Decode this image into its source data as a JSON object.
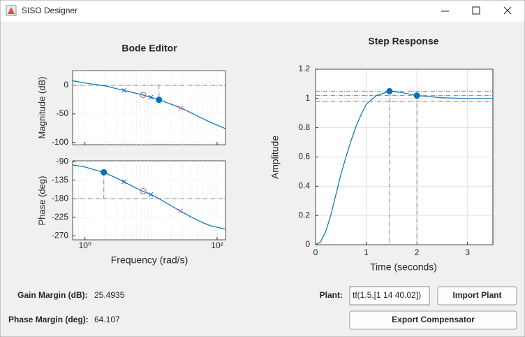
{
  "window": {
    "title": "SISO Designer"
  },
  "bode": {
    "title": "Bode Editor",
    "xlabel": "Frequency (rad/s)",
    "xscale": "log",
    "xlim": [
      0.65,
      134
    ],
    "xticks": [
      {
        "value": 1,
        "label": "10⁰"
      },
      {
        "value": 100,
        "label": "10²"
      }
    ],
    "line_color": "#0072bd",
    "frequency": [
      0.65,
      1,
      2,
      3,
      5,
      7,
      10,
      13.2,
      20,
      30,
      40,
      60,
      80,
      134
    ],
    "magnitude": {
      "ylabel": "Magnitude (dB)",
      "ylim": [
        -104,
        25.6
      ],
      "yticks": [
        0,
        -50,
        -100
      ],
      "reference": 0,
      "values": [
        8,
        4,
        -1,
        -6,
        -12,
        -16,
        -21,
        -25.5,
        -33,
        -41,
        -48,
        -58,
        -65,
        -76
      ]
    },
    "phase": {
      "ylabel": "Phase (deg)",
      "ylim": [
        -280,
        -88
      ],
      "yticks": [
        -90,
        -135,
        -180,
        -225,
        -270
      ],
      "reference": -180,
      "values": [
        -98,
        -103,
        -117,
        -130,
        -148,
        -160,
        -170,
        -180,
        -197,
        -213,
        -224,
        -238,
        -246,
        -254
      ]
    },
    "markers": [
      {
        "shape": "x",
        "color": "#0072bd",
        "frequency": 3.9,
        "magnitude": -9,
        "phase": -139
      },
      {
        "shape": "x",
        "color": "#0072bd",
        "frequency": 9.9,
        "magnitude": -21,
        "phase": -170
      },
      {
        "shape": "o",
        "color": "#e05050",
        "frequency": 7.6,
        "magnitude": -17,
        "phase": -162
      },
      {
        "shape": "x",
        "color": "#e05050",
        "frequency": 28,
        "magnitude": -40,
        "phase": -210
      }
    ],
    "gain_margin_point": {
      "frequency": 13.2,
      "magnitude": -25.49
    },
    "phase_margin_point": {
      "frequency": 1.93,
      "phase": -115.9
    }
  },
  "step": {
    "title": "Step Response",
    "xlabel": "Time (seconds)",
    "ylabel": "Amplitude",
    "xlim": [
      0,
      3.5
    ],
    "xticks": [
      0,
      1,
      2,
      3
    ],
    "ylim": [
      0,
      1.2
    ],
    "yticks": [
      0,
      0.2,
      0.4,
      0.6,
      0.8,
      1,
      1.2
    ],
    "grid": true,
    "line_color": "#0072bd",
    "time": [
      0,
      0.1,
      0.2,
      0.3,
      0.4,
      0.5,
      0.6,
      0.7,
      0.8,
      0.9,
      1.0,
      1.2,
      1.46,
      1.7,
      2.0,
      2.5,
      3.0,
      3.5
    ],
    "values": [
      0,
      0.02,
      0.09,
      0.2,
      0.34,
      0.48,
      0.6,
      0.71,
      0.81,
      0.89,
      0.96,
      1.02,
      1.05,
      1.04,
      1.02,
      1.005,
      1.0,
      1.0
    ],
    "peak_point": {
      "time": 1.46,
      "value": 1.05
    },
    "settling_point": {
      "time": 2.0,
      "value": 1.02
    },
    "settling_band": [
      0.98,
      1.02
    ]
  },
  "form": {
    "gain_margin": {
      "label": "Gain Margin (dB):",
      "value": "25.4935"
    },
    "phase_margin": {
      "label": "Phase Margin (deg):",
      "value": "64.107"
    },
    "plant": {
      "label": "Plant:",
      "value": "tf(1.5,[1 14 40.02])"
    },
    "buttons": [
      "Import Plant",
      "Export Compensator"
    ]
  }
}
